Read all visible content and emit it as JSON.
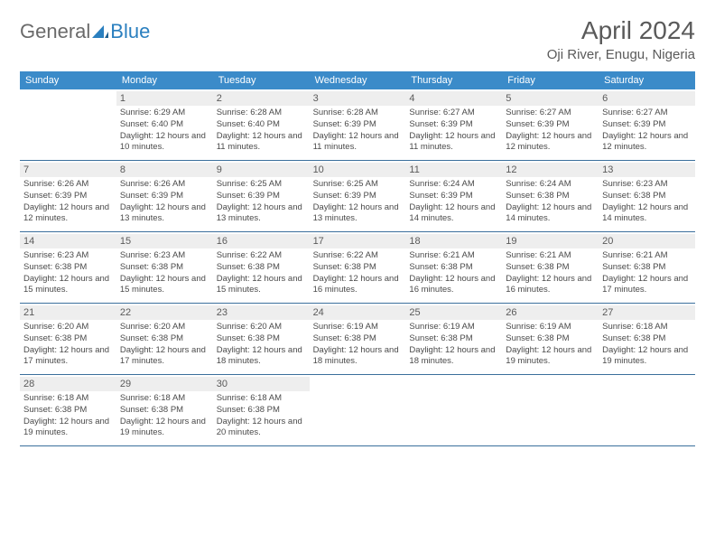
{
  "logo": {
    "general": "General",
    "blue": "Blue"
  },
  "title": "April 2024",
  "location": "Oji River, Enugu, Nigeria",
  "colors": {
    "header_bg": "#3b8bc9",
    "header_text": "#ffffff",
    "daynum_bg": "#eeeeee",
    "week_border": "#3b6f9c",
    "text": "#4a4a4a",
    "logo_blue": "#2a7fbf"
  },
  "typography": {
    "title_fontsize": 28,
    "location_fontsize": 15,
    "dayhead_fontsize": 11,
    "cell_fontsize": 9.5
  },
  "day_names": [
    "Sunday",
    "Monday",
    "Tuesday",
    "Wednesday",
    "Thursday",
    "Friday",
    "Saturday"
  ],
  "weeks": [
    [
      {
        "day": "",
        "sunrise": "",
        "sunset": "",
        "daylight": ""
      },
      {
        "day": "1",
        "sunrise": "Sunrise: 6:29 AM",
        "sunset": "Sunset: 6:40 PM",
        "daylight": "Daylight: 12 hours and 10 minutes."
      },
      {
        "day": "2",
        "sunrise": "Sunrise: 6:28 AM",
        "sunset": "Sunset: 6:40 PM",
        "daylight": "Daylight: 12 hours and 11 minutes."
      },
      {
        "day": "3",
        "sunrise": "Sunrise: 6:28 AM",
        "sunset": "Sunset: 6:39 PM",
        "daylight": "Daylight: 12 hours and 11 minutes."
      },
      {
        "day": "4",
        "sunrise": "Sunrise: 6:27 AM",
        "sunset": "Sunset: 6:39 PM",
        "daylight": "Daylight: 12 hours and 11 minutes."
      },
      {
        "day": "5",
        "sunrise": "Sunrise: 6:27 AM",
        "sunset": "Sunset: 6:39 PM",
        "daylight": "Daylight: 12 hours and 12 minutes."
      },
      {
        "day": "6",
        "sunrise": "Sunrise: 6:27 AM",
        "sunset": "Sunset: 6:39 PM",
        "daylight": "Daylight: 12 hours and 12 minutes."
      }
    ],
    [
      {
        "day": "7",
        "sunrise": "Sunrise: 6:26 AM",
        "sunset": "Sunset: 6:39 PM",
        "daylight": "Daylight: 12 hours and 12 minutes."
      },
      {
        "day": "8",
        "sunrise": "Sunrise: 6:26 AM",
        "sunset": "Sunset: 6:39 PM",
        "daylight": "Daylight: 12 hours and 13 minutes."
      },
      {
        "day": "9",
        "sunrise": "Sunrise: 6:25 AM",
        "sunset": "Sunset: 6:39 PM",
        "daylight": "Daylight: 12 hours and 13 minutes."
      },
      {
        "day": "10",
        "sunrise": "Sunrise: 6:25 AM",
        "sunset": "Sunset: 6:39 PM",
        "daylight": "Daylight: 12 hours and 13 minutes."
      },
      {
        "day": "11",
        "sunrise": "Sunrise: 6:24 AM",
        "sunset": "Sunset: 6:39 PM",
        "daylight": "Daylight: 12 hours and 14 minutes."
      },
      {
        "day": "12",
        "sunrise": "Sunrise: 6:24 AM",
        "sunset": "Sunset: 6:38 PM",
        "daylight": "Daylight: 12 hours and 14 minutes."
      },
      {
        "day": "13",
        "sunrise": "Sunrise: 6:23 AM",
        "sunset": "Sunset: 6:38 PM",
        "daylight": "Daylight: 12 hours and 14 minutes."
      }
    ],
    [
      {
        "day": "14",
        "sunrise": "Sunrise: 6:23 AM",
        "sunset": "Sunset: 6:38 PM",
        "daylight": "Daylight: 12 hours and 15 minutes."
      },
      {
        "day": "15",
        "sunrise": "Sunrise: 6:23 AM",
        "sunset": "Sunset: 6:38 PM",
        "daylight": "Daylight: 12 hours and 15 minutes."
      },
      {
        "day": "16",
        "sunrise": "Sunrise: 6:22 AM",
        "sunset": "Sunset: 6:38 PM",
        "daylight": "Daylight: 12 hours and 15 minutes."
      },
      {
        "day": "17",
        "sunrise": "Sunrise: 6:22 AM",
        "sunset": "Sunset: 6:38 PM",
        "daylight": "Daylight: 12 hours and 16 minutes."
      },
      {
        "day": "18",
        "sunrise": "Sunrise: 6:21 AM",
        "sunset": "Sunset: 6:38 PM",
        "daylight": "Daylight: 12 hours and 16 minutes."
      },
      {
        "day": "19",
        "sunrise": "Sunrise: 6:21 AM",
        "sunset": "Sunset: 6:38 PM",
        "daylight": "Daylight: 12 hours and 16 minutes."
      },
      {
        "day": "20",
        "sunrise": "Sunrise: 6:21 AM",
        "sunset": "Sunset: 6:38 PM",
        "daylight": "Daylight: 12 hours and 17 minutes."
      }
    ],
    [
      {
        "day": "21",
        "sunrise": "Sunrise: 6:20 AM",
        "sunset": "Sunset: 6:38 PM",
        "daylight": "Daylight: 12 hours and 17 minutes."
      },
      {
        "day": "22",
        "sunrise": "Sunrise: 6:20 AM",
        "sunset": "Sunset: 6:38 PM",
        "daylight": "Daylight: 12 hours and 17 minutes."
      },
      {
        "day": "23",
        "sunrise": "Sunrise: 6:20 AM",
        "sunset": "Sunset: 6:38 PM",
        "daylight": "Daylight: 12 hours and 18 minutes."
      },
      {
        "day": "24",
        "sunrise": "Sunrise: 6:19 AM",
        "sunset": "Sunset: 6:38 PM",
        "daylight": "Daylight: 12 hours and 18 minutes."
      },
      {
        "day": "25",
        "sunrise": "Sunrise: 6:19 AM",
        "sunset": "Sunset: 6:38 PM",
        "daylight": "Daylight: 12 hours and 18 minutes."
      },
      {
        "day": "26",
        "sunrise": "Sunrise: 6:19 AM",
        "sunset": "Sunset: 6:38 PM",
        "daylight": "Daylight: 12 hours and 19 minutes."
      },
      {
        "day": "27",
        "sunrise": "Sunrise: 6:18 AM",
        "sunset": "Sunset: 6:38 PM",
        "daylight": "Daylight: 12 hours and 19 minutes."
      }
    ],
    [
      {
        "day": "28",
        "sunrise": "Sunrise: 6:18 AM",
        "sunset": "Sunset: 6:38 PM",
        "daylight": "Daylight: 12 hours and 19 minutes."
      },
      {
        "day": "29",
        "sunrise": "Sunrise: 6:18 AM",
        "sunset": "Sunset: 6:38 PM",
        "daylight": "Daylight: 12 hours and 19 minutes."
      },
      {
        "day": "30",
        "sunrise": "Sunrise: 6:18 AM",
        "sunset": "Sunset: 6:38 PM",
        "daylight": "Daylight: 12 hours and 20 minutes."
      },
      {
        "day": "",
        "sunrise": "",
        "sunset": "",
        "daylight": ""
      },
      {
        "day": "",
        "sunrise": "",
        "sunset": "",
        "daylight": ""
      },
      {
        "day": "",
        "sunrise": "",
        "sunset": "",
        "daylight": ""
      },
      {
        "day": "",
        "sunrise": "",
        "sunset": "",
        "daylight": ""
      }
    ]
  ]
}
